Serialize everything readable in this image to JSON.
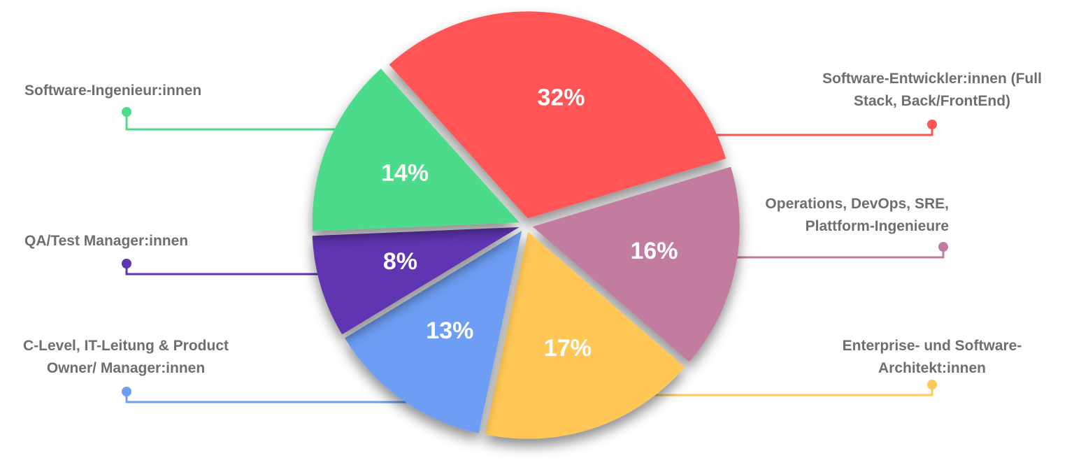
{
  "chart_data": {
    "type": "pie",
    "categories": [
      "Software-Entwickler:innen (Full Stack, Back/FrontEnd)",
      "Operations, DevOps, SRE, Plattform-Ingenieure",
      "Enterprise- und Software-Architekt:innen",
      "C-Level, IT-Leitung & Product Owner/ Manager:innen",
      "QA/Test Manager:innen",
      "Software-Ingenieur:innen"
    ],
    "values": [
      32,
      16,
      17,
      13,
      8,
      14
    ],
    "value_labels": [
      "32%",
      "16%",
      "17%",
      "13%",
      "8%",
      "14%"
    ],
    "colors": [
      "#ff5456",
      "#c27ba0",
      "#ffc857",
      "#6d9ef4",
      "#5e35b1",
      "#4cdb8a"
    ]
  }
}
